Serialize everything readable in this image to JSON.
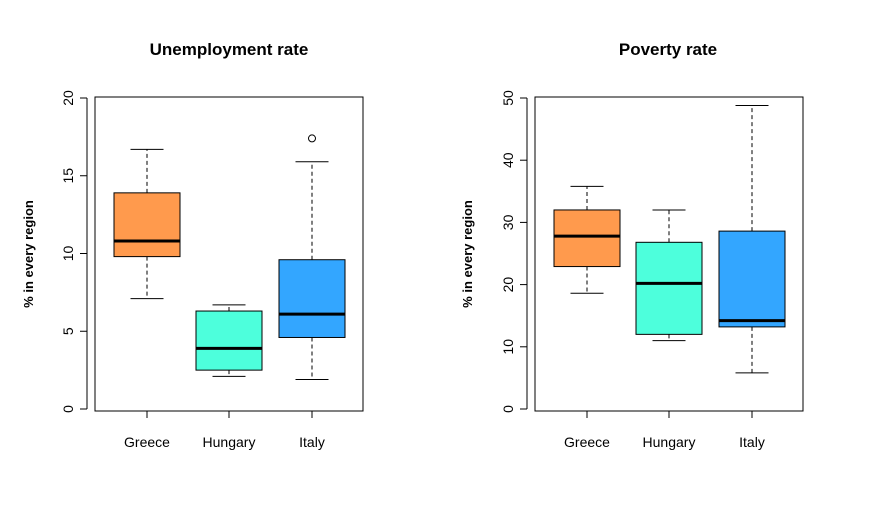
{
  "chart_data": [
    {
      "type": "box",
      "title": "Unemployment rate",
      "ylabel": "% in every region",
      "ylim": [
        0,
        20
      ],
      "yticks": [
        "0",
        "5",
        "10",
        "15",
        "20"
      ],
      "categories": [
        "Greece",
        "Hungary",
        "Italy"
      ],
      "boxes": [
        {
          "category": "Greece",
          "color": "#FF9A4D",
          "whisker_low": 7.1,
          "q1": 9.8,
          "median": 10.8,
          "q3": 13.9,
          "whisker_high": 16.7,
          "outliers": []
        },
        {
          "category": "Hungary",
          "color": "#4DFFDC",
          "whisker_low": 2.1,
          "q1": 2.5,
          "median": 3.9,
          "q3": 6.3,
          "whisker_high": 6.7,
          "outliers": []
        },
        {
          "category": "Italy",
          "color": "#33A6FF",
          "whisker_low": 1.9,
          "q1": 4.6,
          "median": 6.1,
          "q3": 9.6,
          "whisker_high": 15.9,
          "outliers": [
            17.4
          ]
        }
      ]
    },
    {
      "type": "box",
      "title": "Poverty rate",
      "ylabel": "% in every region",
      "ylim": [
        0,
        50
      ],
      "yticks": [
        "0",
        "10",
        "20",
        "30",
        "40",
        "50"
      ],
      "categories": [
        "Greece",
        "Hungary",
        "Italy"
      ],
      "boxes": [
        {
          "category": "Greece",
          "color": "#FF9A4D",
          "whisker_low": 18.6,
          "q1": 22.9,
          "median": 27.8,
          "q3": 32.0,
          "whisker_high": 35.8,
          "outliers": []
        },
        {
          "category": "Hungary",
          "color": "#4DFFDC",
          "whisker_low": 11.0,
          "q1": 12.0,
          "median": 20.2,
          "q3": 26.8,
          "whisker_high": 32.0,
          "outliers": []
        },
        {
          "category": "Italy",
          "color": "#33A6FF",
          "whisker_low": 5.8,
          "q1": 13.2,
          "median": 14.2,
          "q3": 28.6,
          "whisker_high": 48.8,
          "outliers": []
        }
      ]
    }
  ]
}
